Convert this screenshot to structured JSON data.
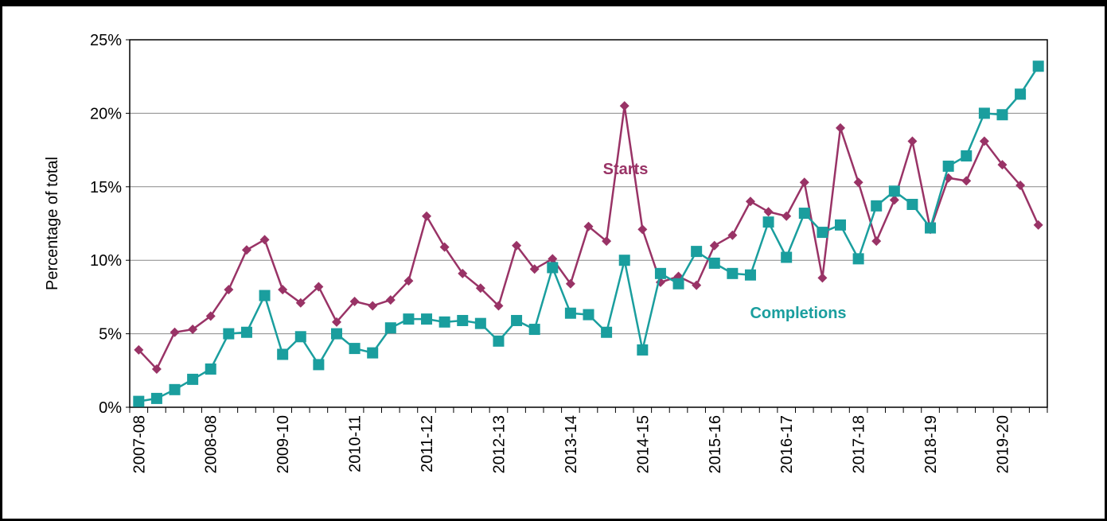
{
  "chart_data": {
    "type": "line",
    "y_label": "Percentage of total",
    "categories": [
      "2007-08",
      null,
      null,
      null,
      "2008-08",
      null,
      null,
      null,
      "2009-10",
      null,
      null,
      null,
      "2010-11",
      null,
      null,
      null,
      "2011-12",
      null,
      null,
      null,
      "2012-13",
      null,
      null,
      null,
      "2013-14",
      null,
      null,
      null,
      "2014-15",
      null,
      null,
      null,
      "2015-16",
      null,
      null,
      null,
      "2016-17",
      null,
      null,
      null,
      "2017-18",
      null,
      null,
      null,
      "2018-19",
      null,
      null,
      null,
      "2019-20",
      null,
      null
    ],
    "series": [
      {
        "name": "Starts",
        "color": "#993366",
        "marker": "diamond",
        "values": [
          3.9,
          2.6,
          5.1,
          5.3,
          6.2,
          8.0,
          10.7,
          11.4,
          8.0,
          7.1,
          8.2,
          5.8,
          7.2,
          6.9,
          7.3,
          8.6,
          13.0,
          10.9,
          9.1,
          8.1,
          6.9,
          11.0,
          9.4,
          10.1,
          8.4,
          12.3,
          11.3,
          20.5,
          12.1,
          8.5,
          8.9,
          8.3,
          11.0,
          11.7,
          14.0,
          13.3,
          13.0,
          15.3,
          8.8,
          19.0,
          15.3,
          11.3,
          14.1,
          18.1,
          12.1,
          15.6,
          15.4,
          18.1,
          16.5,
          15.1,
          12.4
        ]
      },
      {
        "name": "Completions",
        "color": "#1a9e9e",
        "marker": "square",
        "values": [
          0.4,
          0.6,
          1.2,
          1.9,
          2.6,
          5.0,
          5.1,
          7.6,
          3.6,
          4.8,
          2.9,
          5.0,
          4.0,
          3.7,
          5.4,
          6.0,
          6.0,
          5.8,
          5.9,
          5.7,
          4.5,
          5.9,
          5.3,
          9.5,
          6.4,
          6.3,
          5.1,
          10.0,
          3.9,
          9.1,
          8.4,
          10.6,
          9.8,
          9.1,
          9.0,
          12.6,
          10.2,
          13.2,
          11.9,
          12.4,
          10.1,
          13.7,
          14.7,
          13.8,
          12.2,
          16.4,
          17.1,
          20.0,
          19.9,
          21.3,
          23.2
        ]
      }
    ],
    "ylim": [
      0,
      25
    ],
    "yticks": [
      {
        "value": 0,
        "label": "0%"
      },
      {
        "value": 5,
        "label": "5%"
      },
      {
        "value": 10,
        "label": "10%"
      },
      {
        "value": 15,
        "label": "15%"
      },
      {
        "value": 20,
        "label": "20%"
      },
      {
        "value": 25,
        "label": "25%"
      }
    ],
    "grid": true
  }
}
